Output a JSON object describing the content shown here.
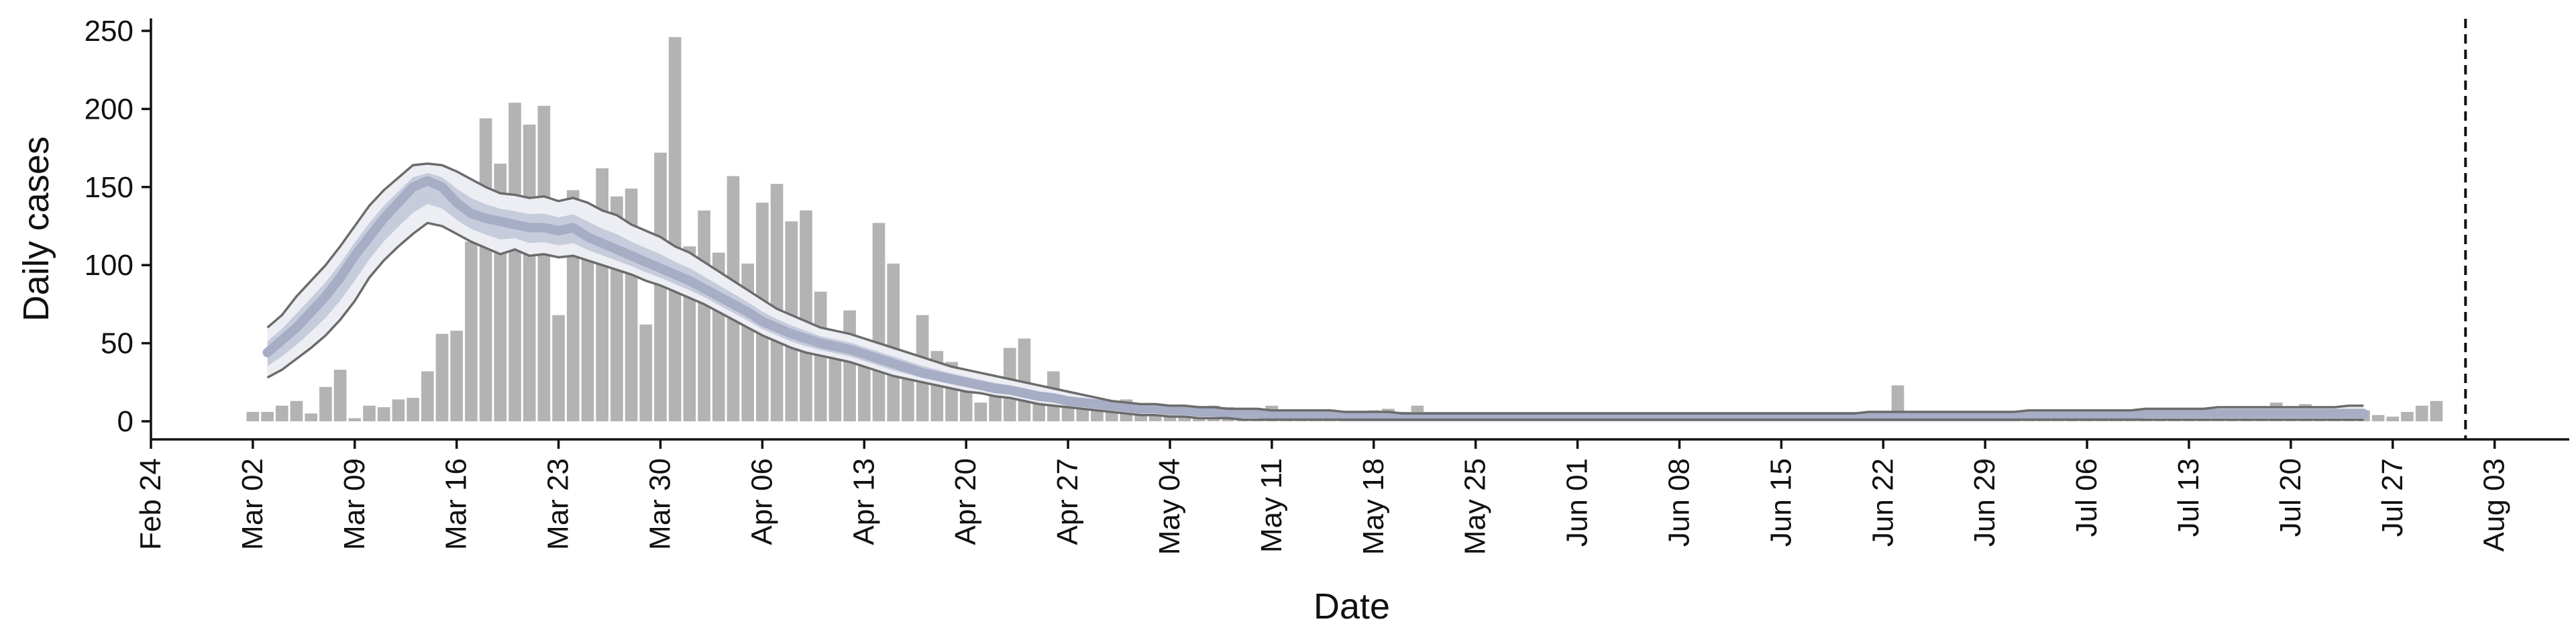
{
  "chart_data": {
    "type": "bar",
    "title": "",
    "xlabel": "Date",
    "ylabel": "Daily cases",
    "x_start": "2020-02-24",
    "ylim": [
      -12,
      258
    ],
    "yticks": [
      0,
      50,
      100,
      150,
      200,
      250
    ],
    "xticks": [
      "Feb 24",
      "Mar 02",
      "Mar 09",
      "Mar 16",
      "Mar 23",
      "Mar 30",
      "Apr 06",
      "Apr 13",
      "Apr 20",
      "Apr 27",
      "May 04",
      "May 11",
      "May 18",
      "May 25",
      "Jun 01",
      "Jun 08",
      "Jun 15",
      "Jun 22",
      "Jun 29",
      "Jul 06",
      "Jul 13",
      "Jul 20",
      "Jul 27",
      "Aug 03"
    ],
    "vline_date": "2020-08-01",
    "grid": false,
    "bars": {
      "start": "2020-03-02",
      "values": [
        6,
        6,
        10,
        13,
        5,
        22,
        33,
        2,
        10,
        9,
        14,
        15,
        32,
        56,
        58,
        115,
        194,
        165,
        204,
        190,
        202,
        68,
        148,
        130,
        162,
        144,
        149,
        62,
        172,
        246,
        112,
        135,
        108,
        157,
        101,
        140,
        152,
        128,
        135,
        83,
        55,
        71,
        41,
        127,
        101,
        33,
        68,
        45,
        38,
        32,
        12,
        22,
        47,
        53,
        20,
        32,
        12,
        10,
        13,
        12,
        14,
        10,
        11,
        7,
        4,
        7,
        10,
        9,
        7,
        8,
        10,
        5,
        5,
        6,
        6,
        5,
        6,
        7,
        8,
        3,
        10,
        3,
        4,
        3,
        4,
        5,
        3,
        4,
        3,
        4,
        4,
        3,
        3,
        3,
        2,
        4,
        3,
        3,
        4,
        3,
        3,
        2,
        3,
        4,
        3,
        3,
        4,
        3,
        3,
        2,
        3,
        3,
        4,
        23,
        3,
        4,
        3,
        3,
        2,
        3,
        3,
        4,
        4,
        5,
        3,
        3,
        7,
        5,
        4,
        6,
        7,
        3,
        5,
        7,
        8,
        7,
        9,
        8,
        7,
        12,
        5,
        11,
        5,
        6,
        4,
        7,
        4,
        3,
        6,
        10,
        13
      ]
    },
    "model_band": {
      "start": "2020-03-03",
      "median": [
        44,
        52,
        60,
        70,
        80,
        92,
        106,
        118,
        130,
        140,
        150,
        154,
        150,
        140,
        133,
        130,
        128,
        126,
        124,
        124,
        122,
        124,
        118,
        114,
        110,
        106,
        102,
        98,
        94,
        90,
        85,
        80,
        75,
        70,
        64,
        60,
        56,
        53,
        50,
        48,
        46,
        43,
        40,
        37,
        34,
        31,
        29,
        27,
        25,
        23,
        21,
        20,
        18,
        16,
        15,
        13,
        12,
        11,
        10,
        9,
        8,
        8,
        7,
        7,
        6,
        6,
        5,
        5,
        5,
        4,
        4,
        4,
        4,
        4,
        3,
        3,
        3,
        3,
        3,
        3,
        3,
        3,
        3,
        3,
        3,
        3,
        3,
        3,
        3,
        3,
        3,
        3,
        3,
        3,
        3,
        3,
        3,
        3,
        3,
        3,
        3,
        3,
        3,
        3,
        3,
        3,
        3,
        3,
        3,
        3,
        3,
        3,
        3,
        3,
        3,
        3,
        3,
        3,
        3,
        3,
        3,
        4,
        4,
        4,
        4,
        4,
        4,
        4,
        4,
        5,
        5,
        5,
        5,
        5,
        5,
        5,
        5,
        5,
        5,
        5,
        5,
        5,
        5,
        5,
        5
      ],
      "outer_lower": [
        28,
        33,
        40,
        47,
        55,
        65,
        77,
        92,
        103,
        112,
        120,
        127,
        125,
        120,
        115,
        111,
        107,
        110,
        106,
        107,
        105,
        106,
        103,
        100,
        97,
        94,
        90,
        87,
        83,
        79,
        75,
        70,
        65,
        60,
        55,
        51,
        47,
        44,
        42,
        40,
        38,
        35,
        32,
        29,
        27,
        25,
        23,
        21,
        19,
        18,
        16,
        15,
        13,
        11,
        10,
        9,
        8,
        7,
        6,
        5,
        4,
        4,
        3,
        3,
        2,
        2,
        2,
        1,
        1,
        1,
        1,
        1,
        1,
        1,
        1,
        1,
        1,
        1,
        1,
        1,
        1,
        1,
        1,
        1,
        1,
        1,
        1,
        1,
        1,
        1,
        1,
        1,
        1,
        1,
        1,
        1,
        1,
        1,
        1,
        1,
        1,
        1,
        1,
        1,
        1,
        1,
        1,
        1,
        1,
        1,
        1,
        1,
        1,
        1,
        1,
        1,
        1,
        1,
        1,
        1,
        1,
        1,
        1,
        1,
        1,
        1,
        1,
        1,
        1,
        1,
        1,
        1,
        1,
        1,
        1,
        1,
        1,
        1,
        1,
        1,
        1,
        1,
        1,
        1,
        1
      ],
      "outer_upper": [
        60,
        68,
        80,
        90,
        100,
        112,
        125,
        138,
        148,
        156,
        164,
        165,
        164,
        160,
        155,
        150,
        146,
        145,
        143,
        144,
        141,
        143,
        140,
        135,
        132,
        126,
        122,
        118,
        112,
        108,
        102,
        96,
        90,
        84,
        78,
        72,
        68,
        64,
        60,
        58,
        56,
        53,
        50,
        47,
        44,
        41,
        38,
        35,
        33,
        31,
        29,
        27,
        25,
        23,
        21,
        19,
        17,
        15,
        13,
        12,
        11,
        11,
        10,
        10,
        9,
        9,
        8,
        8,
        8,
        7,
        7,
        7,
        7,
        7,
        6,
        6,
        6,
        6,
        5,
        5,
        5,
        5,
        5,
        5,
        5,
        5,
        5,
        5,
        5,
        5,
        5,
        5,
        5,
        5,
        5,
        5,
        5,
        5,
        5,
        5,
        5,
        5,
        5,
        5,
        5,
        5,
        5,
        5,
        5,
        5,
        6,
        6,
        6,
        6,
        6,
        6,
        6,
        6,
        6,
        6,
        6,
        7,
        7,
        7,
        7,
        7,
        7,
        7,
        7,
        8,
        8,
        8,
        8,
        8,
        9,
        9,
        9,
        9,
        9,
        9,
        9,
        9,
        9,
        10,
        10
      ]
    },
    "colors": {
      "bars": "#b3b3b3",
      "band_outer": "#eceef4",
      "band_mid": "#c7ccdc",
      "band_median": "#a6adc5",
      "band_edge": "#6b6b6b",
      "axis": "#111111"
    }
  }
}
